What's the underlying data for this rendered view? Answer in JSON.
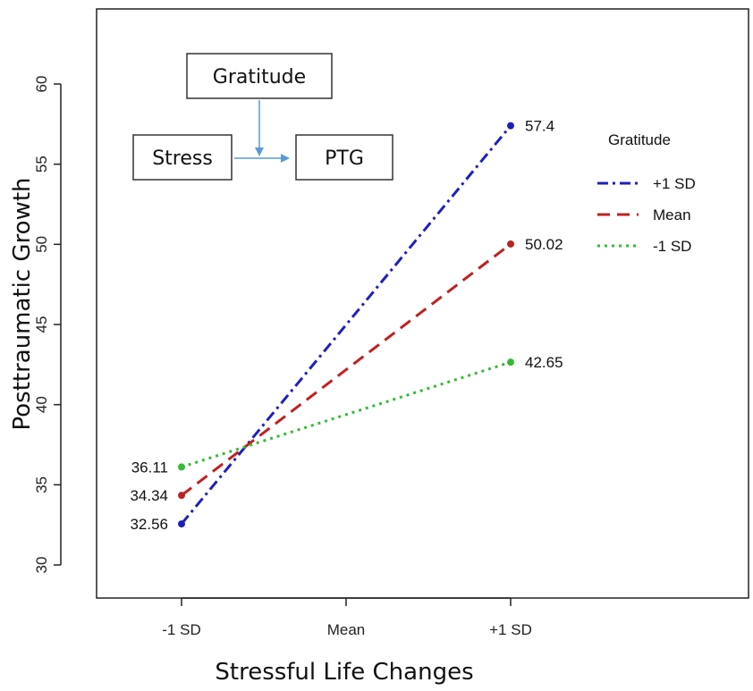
{
  "chart_data": {
    "type": "line",
    "xlabel": "Stressful Life Changes",
    "ylabel": "Posttraumatic Growth",
    "categories": [
      "-1 SD",
      "Mean",
      "+1 SD"
    ],
    "ylim": [
      28,
      66
    ],
    "yticks": [
      30,
      35,
      40,
      45,
      50,
      55,
      60
    ],
    "grid": false,
    "legend": {
      "title": "Gratitude",
      "position": "top-right"
    },
    "series": [
      {
        "name": "+1 SD",
        "x": [
          "-1 SD",
          "+1 SD"
        ],
        "values": [
          32.56,
          57.4
        ],
        "labels": [
          "32.56",
          "57.4"
        ],
        "color": "#1f1fbf",
        "dash": "dashdot"
      },
      {
        "name": "Mean",
        "x": [
          "-1 SD",
          "+1 SD"
        ],
        "values": [
          34.34,
          50.02
        ],
        "labels": [
          "34.34",
          "50.02"
        ],
        "color": "#c02020",
        "dash": "dashed"
      },
      {
        "name": "-1 SD",
        "x": [
          "-1 SD",
          "+1 SD"
        ],
        "values": [
          36.11,
          42.65
        ],
        "labels": [
          "36.11",
          "42.65"
        ],
        "color": "#33bb33",
        "dash": "dotted"
      }
    ]
  },
  "diagram": {
    "moderator": "Gratitude",
    "predictor": "Stress",
    "outcome": "PTG"
  }
}
